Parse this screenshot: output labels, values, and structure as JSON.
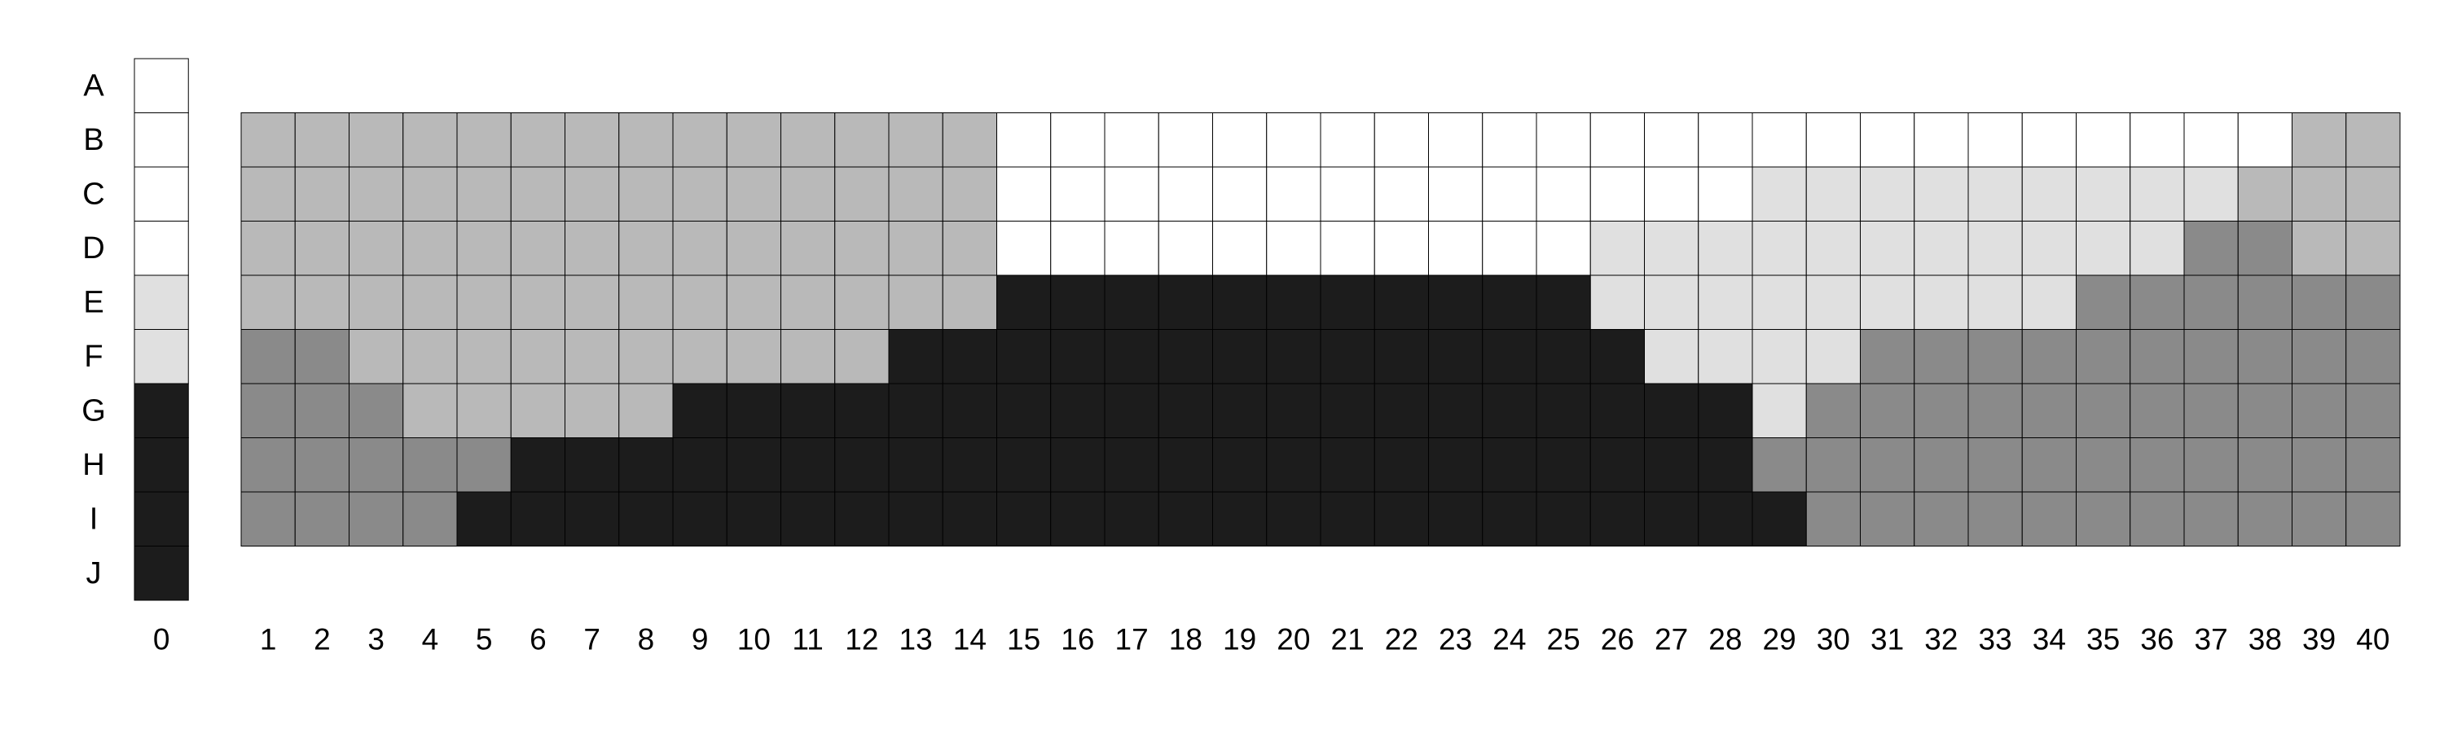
{
  "chart_data": {
    "type": "heatmap",
    "title": "",
    "xlabel": "",
    "ylabel": "",
    "rows": [
      "A",
      "B",
      "C",
      "D",
      "E",
      "F",
      "G",
      "H",
      "I",
      "J"
    ],
    "key_column": {
      "label": "0",
      "levels": [
        0,
        0,
        0,
        0,
        1,
        1,
        4,
        4,
        4,
        4
      ]
    },
    "columns": [
      "1",
      "2",
      "3",
      "4",
      "5",
      "6",
      "7",
      "8",
      "9",
      "10",
      "11",
      "12",
      "13",
      "14",
      "15",
      "16",
      "17",
      "18",
      "19",
      "20",
      "21",
      "22",
      "23",
      "24",
      "25",
      "26",
      "27",
      "28",
      "29",
      "30",
      "31",
      "32",
      "33",
      "34",
      "35",
      "36",
      "37",
      "38",
      "39",
      "40"
    ],
    "grid_rows": [
      "B",
      "C",
      "D",
      "E",
      "F",
      "G",
      "H",
      "I"
    ],
    "grid": [
      [
        2,
        2,
        2,
        2,
        2,
        2,
        2,
        2,
        2,
        2,
        2,
        2,
        2,
        2,
        0,
        0,
        0,
        0,
        0,
        0,
        0,
        0,
        0,
        0,
        0,
        0,
        0,
        0,
        0,
        0,
        0,
        0,
        0,
        0,
        0,
        0,
        0,
        0,
        2,
        2
      ],
      [
        2,
        2,
        2,
        2,
        2,
        2,
        2,
        2,
        2,
        2,
        2,
        2,
        2,
        2,
        0,
        0,
        0,
        0,
        0,
        0,
        0,
        0,
        0,
        0,
        0,
        0,
        0,
        0,
        1,
        1,
        1,
        1,
        1,
        1,
        1,
        1,
        1,
        2,
        2,
        2
      ],
      [
        2,
        2,
        2,
        2,
        2,
        2,
        2,
        2,
        2,
        2,
        2,
        2,
        2,
        2,
        0,
        0,
        0,
        0,
        0,
        0,
        0,
        0,
        0,
        0,
        0,
        1,
        1,
        1,
        1,
        1,
        1,
        1,
        1,
        1,
        1,
        1,
        3,
        3,
        2,
        2
      ],
      [
        2,
        2,
        2,
        2,
        2,
        2,
        2,
        2,
        2,
        2,
        2,
        2,
        2,
        2,
        4,
        4,
        4,
        4,
        4,
        4,
        4,
        4,
        4,
        4,
        4,
        1,
        1,
        1,
        1,
        1,
        1,
        1,
        1,
        1,
        3,
        3,
        3,
        3,
        3,
        3
      ],
      [
        3,
        3,
        2,
        2,
        2,
        2,
        2,
        2,
        2,
        2,
        2,
        2,
        4,
        4,
        4,
        4,
        4,
        4,
        4,
        4,
        4,
        4,
        4,
        4,
        4,
        4,
        1,
        1,
        1,
        1,
        3,
        3,
        3,
        3,
        3,
        3,
        3,
        3,
        3,
        3
      ],
      [
        3,
        3,
        3,
        2,
        2,
        2,
        2,
        2,
        4,
        4,
        4,
        4,
        4,
        4,
        4,
        4,
        4,
        4,
        4,
        4,
        4,
        4,
        4,
        4,
        4,
        4,
        4,
        4,
        1,
        3,
        3,
        3,
        3,
        3,
        3,
        3,
        3,
        3,
        3,
        3
      ],
      [
        3,
        3,
        3,
        3,
        3,
        4,
        4,
        4,
        4,
        4,
        4,
        4,
        4,
        4,
        4,
        4,
        4,
        4,
        4,
        4,
        4,
        4,
        4,
        4,
        4,
        4,
        4,
        4,
        3,
        3,
        3,
        3,
        3,
        3,
        3,
        3,
        3,
        3,
        3,
        3
      ],
      [
        3,
        3,
        3,
        3,
        4,
        4,
        4,
        4,
        4,
        4,
        4,
        4,
        4,
        4,
        4,
        4,
        4,
        4,
        4,
        4,
        4,
        4,
        4,
        4,
        4,
        4,
        4,
        4,
        4,
        3,
        3,
        3,
        3,
        3,
        3,
        3,
        3,
        3,
        3,
        3
      ]
    ],
    "level_colors": [
      "#ffffff",
      "#e0e0e0",
      "#b9b9b9",
      "#8a8a8a",
      "#1c1c1c"
    ]
  }
}
